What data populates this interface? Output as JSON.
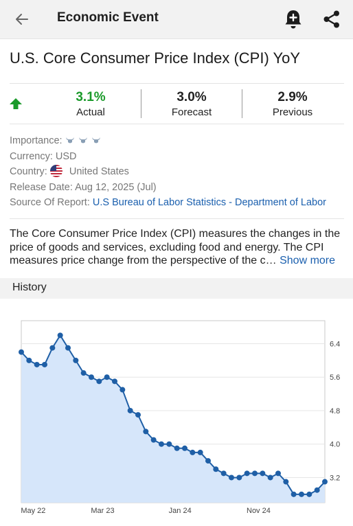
{
  "header": {
    "title": "Economic Event",
    "back_icon": "arrow-left-icon",
    "bell_icon": "bell-plus-icon",
    "share_icon": "share-icon"
  },
  "event": {
    "title": "U.S. Core Consumer Price Index (CPI) YoY",
    "trend_icon": "arrow-up-icon",
    "actual": {
      "value": "3.1%",
      "label": "Actual"
    },
    "forecast": {
      "value": "3.0%",
      "label": "Forecast"
    },
    "previous": {
      "value": "2.9%",
      "label": "Previous"
    }
  },
  "meta": {
    "importance_label": "Importance:",
    "importance_level": 3,
    "currency_label": "Currency:",
    "currency": "USD",
    "country_label": "Country:",
    "country": "United States",
    "release_label": "Release Date:",
    "release_date": "Aug 12, 2025 (Jul)",
    "source_label": "Source Of Report:",
    "source": "U.S Bureau of Labor Statistics - Department of Labor"
  },
  "description": {
    "text": "The Core Consumer Price Index (CPI) measures the changes in the price of goods and services, excluding food and energy. The CPI measures price change from the perspective of the c…",
    "show_more": "Show more"
  },
  "history": {
    "label": "History"
  },
  "colors": {
    "accent": "#1a5fae",
    "positive": "#1a9a2a",
    "line": "#1f5fa6",
    "fill": "#d6e6fa"
  },
  "chart_data": {
    "type": "area",
    "x_tick_labels": [
      "May 22",
      "Mar 23",
      "Jan 24",
      "Nov 24"
    ],
    "y_tick_labels": [
      "6.4",
      "5.6",
      "4.8",
      "4.0",
      "3.2"
    ],
    "y_ticks": [
      6.4,
      5.6,
      4.8,
      4.0,
      3.2
    ],
    "ylim": [
      2.6,
      6.95
    ],
    "grid": true,
    "series": [
      {
        "values": [
          6.2,
          6.0,
          5.9,
          5.9,
          6.3,
          6.6,
          6.3,
          6.0,
          5.7,
          5.6,
          5.5,
          5.6,
          5.5,
          5.3,
          4.8,
          4.7,
          4.3,
          4.1,
          4.0,
          4.0,
          3.9,
          3.9,
          3.8,
          3.8,
          3.6,
          3.4,
          3.3,
          3.2,
          3.2,
          3.3,
          3.3,
          3.3,
          3.2,
          3.3,
          3.1,
          2.8,
          2.8,
          2.8,
          2.9,
          3.1
        ]
      }
    ]
  }
}
